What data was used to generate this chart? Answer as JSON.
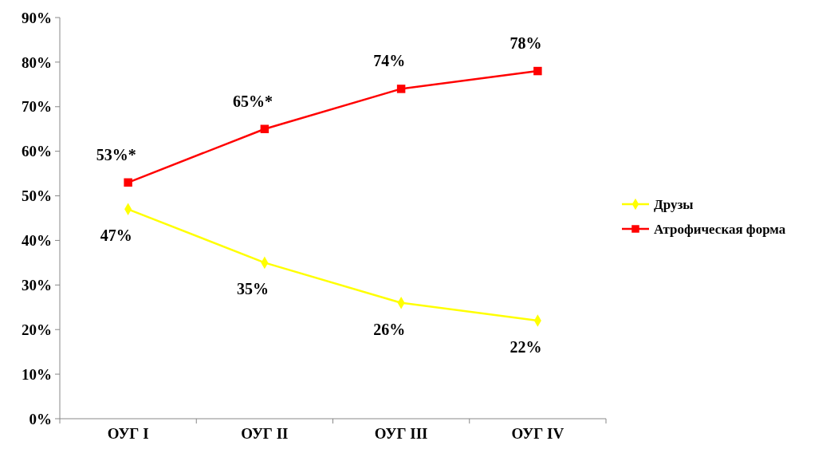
{
  "chart_data": {
    "type": "line",
    "categories": [
      "ОУГ I",
      "ОУГ II",
      "ОУГ III",
      "ОУГ IV"
    ],
    "series": [
      {
        "name": "Друзы",
        "color": "#ffff00",
        "marker": "diamond",
        "values": [
          47,
          35,
          26,
          22
        ],
        "value_labels": [
          "47%",
          "35%",
          "26%",
          "22%"
        ]
      },
      {
        "name": "Атрофическая форма",
        "color": "#ff0000",
        "marker": "square",
        "values": [
          53,
          65,
          74,
          78
        ],
        "value_labels": [
          "53%*",
          "65%*",
          "74%",
          "78%"
        ]
      }
    ],
    "ylim": [
      0,
      90
    ],
    "yticks": [
      {
        "value": 0,
        "label": "0%"
      },
      {
        "value": 10,
        "label": "10%"
      },
      {
        "value": 20,
        "label": "20%"
      },
      {
        "value": 30,
        "label": "30%"
      },
      {
        "value": 40,
        "label": "40%"
      },
      {
        "value": 50,
        "label": "50%"
      },
      {
        "value": 60,
        "label": "60%"
      },
      {
        "value": 70,
        "label": "70%"
      },
      {
        "value": 80,
        "label": "80%"
      },
      {
        "value": 90,
        "label": "90%"
      }
    ],
    "grid": false,
    "legend": "right"
  }
}
